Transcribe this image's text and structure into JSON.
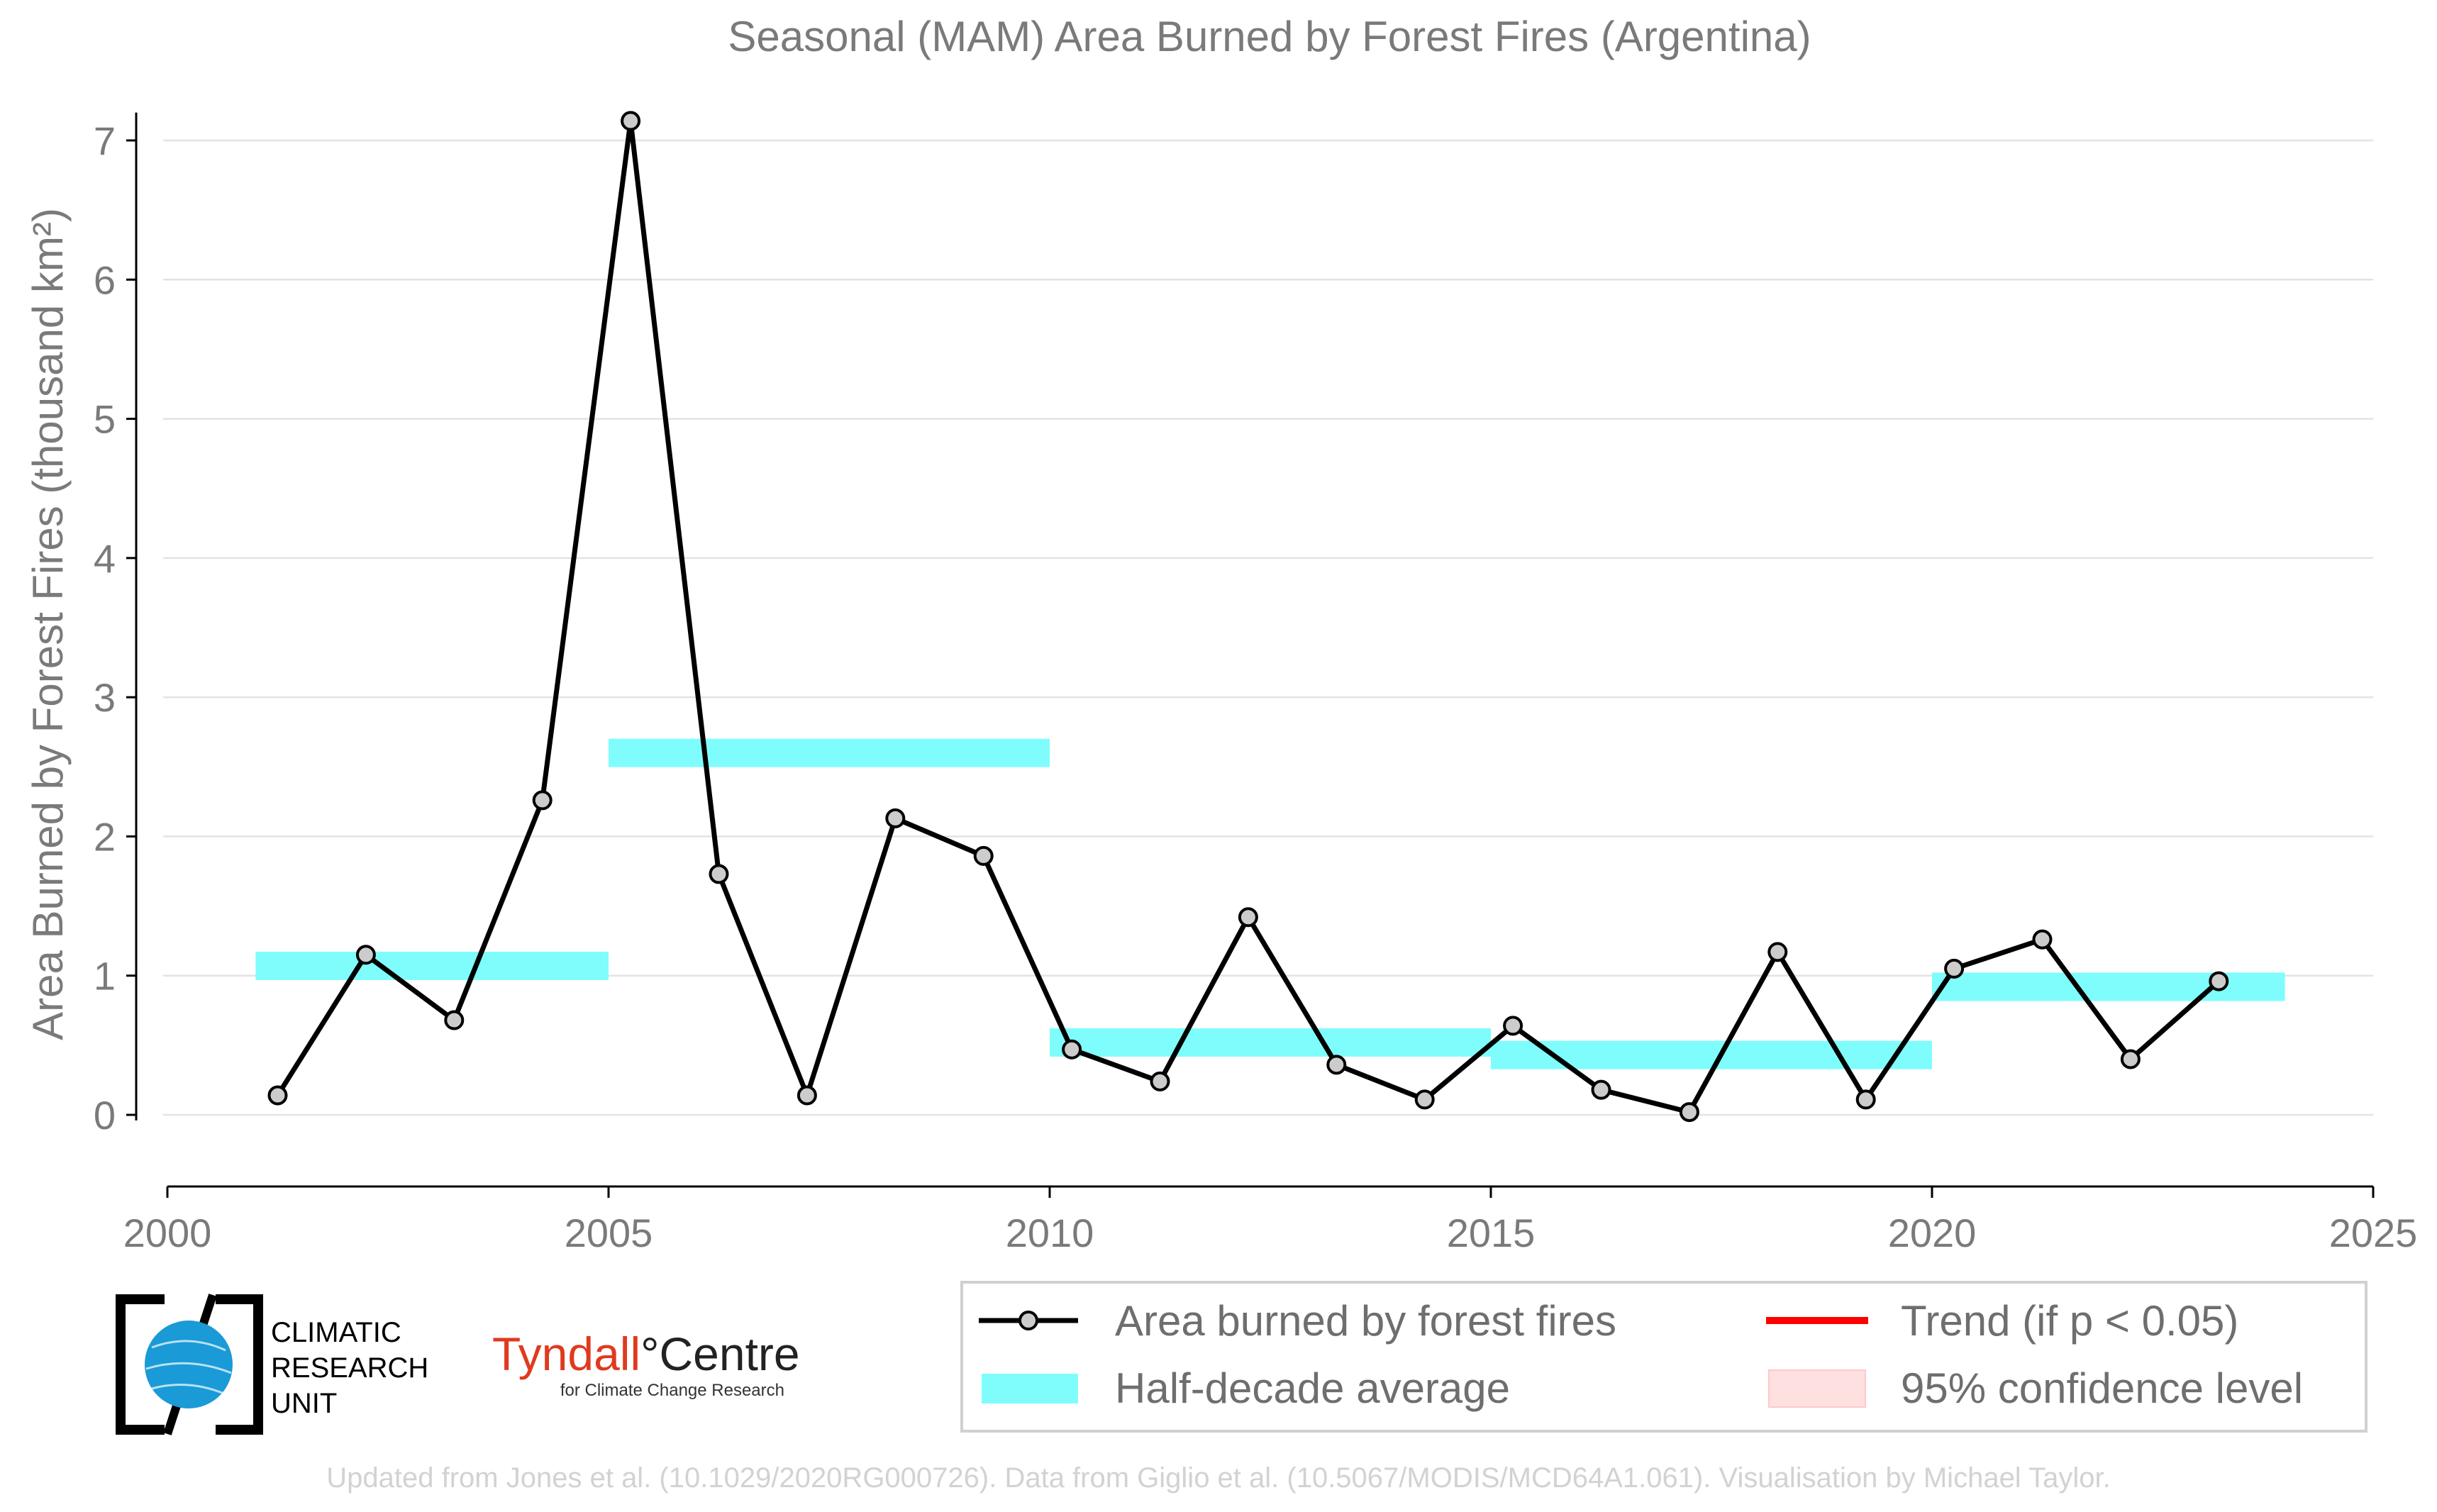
{
  "chart_data": {
    "type": "line",
    "title": "Seasonal (MAM) Area Burned by Forest Fires (Argentina)",
    "xlabel": "",
    "ylabel": "Area Burned by Forest Fires (thousand km²)",
    "xlim": [
      2000,
      2025
    ],
    "ylim": [
      -0.5,
      7.2
    ],
    "xticks": [
      2000,
      2005,
      2010,
      2015,
      2020,
      2025
    ],
    "yticks": [
      0,
      1,
      2,
      3,
      4,
      5,
      6,
      7
    ],
    "grid": "horizontal",
    "series": [
      {
        "name": "Area burned by forest fires",
        "type": "line-marker",
        "color": "#000000",
        "x": [
          2001.25,
          2002.25,
          2003.25,
          2004.25,
          2005.25,
          2006.25,
          2007.25,
          2008.25,
          2009.25,
          2010.25,
          2011.25,
          2012.25,
          2013.25,
          2014.25,
          2015.25,
          2016.25,
          2017.25,
          2018.25,
          2019.25,
          2020.25,
          2021.25,
          2022.25,
          2023.25
        ],
        "y": [
          0.14,
          1.15,
          0.68,
          2.26,
          7.14,
          1.73,
          0.14,
          2.13,
          1.86,
          0.47,
          0.24,
          1.42,
          0.36,
          0.11,
          0.64,
          0.18,
          0.02,
          1.17,
          0.11,
          1.05,
          1.26,
          0.4,
          0.96
        ]
      }
    ],
    "half_decade_average": {
      "name": "Half-decade average",
      "color": "#7ffdfd",
      "segments": [
        {
          "x0": 2001,
          "x1": 2005,
          "y": 1.07
        },
        {
          "x0": 2005,
          "x1": 2010,
          "y": 2.6
        },
        {
          "x0": 2010,
          "x1": 2015,
          "y": 0.52
        },
        {
          "x0": 2015,
          "x1": 2020,
          "y": 0.43
        },
        {
          "x0": 2020,
          "x1": 2024,
          "y": 0.92
        }
      ]
    },
    "legend": {
      "placement": "bottom-right",
      "entries": [
        {
          "label": "Area burned by forest fires",
          "kind": "line-marker",
          "color": "#000000"
        },
        {
          "label": "Trend (if p < 0.05)",
          "kind": "line",
          "color": "#ff0000"
        },
        {
          "label": "Half-decade average",
          "kind": "band",
          "color": "#7ffdfd"
        },
        {
          "label": "95% confidence level",
          "kind": "patch",
          "color": "#ffe0e0"
        }
      ]
    }
  },
  "logos": {
    "cru": {
      "lines": [
        "CLIMATIC",
        "RESEARCH",
        "UNIT"
      ],
      "color": "#1a9ad6"
    },
    "tyndall": {
      "main": "Tyndall",
      "suffix": "°Centre",
      "sub": "for Climate Change Research",
      "accent": "#e03a1e"
    }
  },
  "footer": "Updated from Jones et al. (10.1029/2020RG000726). Data from Giglio et al. (10.5067/MODIS/MCD64A1.061). Visualisation by Michael Taylor."
}
